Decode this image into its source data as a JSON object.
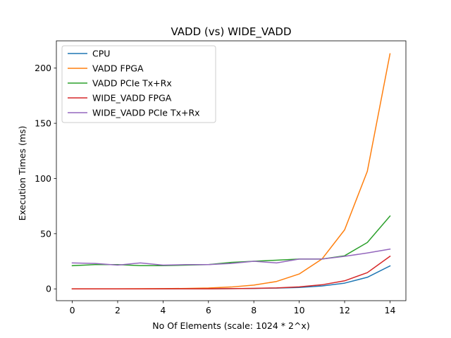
{
  "chart_data": {
    "type": "line",
    "title": "VADD (vs) WIDE_VADD",
    "xlabel": "No Of Elements (scale: 1024 * 2^x)",
    "ylabel": "Execution Times (ms)",
    "xlim": [
      -0.7,
      14.7
    ],
    "ylim": [
      -10.7,
      224.7
    ],
    "xticks": [
      0,
      2,
      4,
      6,
      8,
      10,
      12,
      14
    ],
    "yticks": [
      0,
      50,
      100,
      150,
      200
    ],
    "grid": false,
    "legend_position": "top-left",
    "x": [
      0,
      1,
      2,
      3,
      4,
      5,
      6,
      7,
      8,
      9,
      10,
      11,
      12,
      13,
      14
    ],
    "series": [
      {
        "name": "CPU",
        "color": "#1f77b4",
        "values": [
          0.0,
          0.0,
          0.0,
          0.0,
          0.0,
          0.1,
          0.1,
          0.2,
          0.4,
          0.7,
          1.3,
          2.6,
          5.2,
          10.5,
          20.8
        ]
      },
      {
        "name": "VADD FPGA",
        "color": "#ff7f0e",
        "values": [
          0.05,
          0.1,
          0.1,
          0.15,
          0.2,
          0.4,
          0.8,
          1.7,
          3.4,
          6.7,
          13.5,
          27.0,
          53.5,
          106.5,
          213.0
        ]
      },
      {
        "name": "VADD PCIe Tx+Rx",
        "color": "#2ca02c",
        "values": [
          21.0,
          22.0,
          22.0,
          21.0,
          21.0,
          21.5,
          22.0,
          24.0,
          25.0,
          26.0,
          27.0,
          27.0,
          30.0,
          42.0,
          66.0
        ]
      },
      {
        "name": "WIDE_VADD FPGA",
        "color": "#d62728",
        "values": [
          0.0,
          0.0,
          0.0,
          0.0,
          0.1,
          0.1,
          0.1,
          0.2,
          0.5,
          0.9,
          1.8,
          3.7,
          7.3,
          14.7,
          29.5
        ]
      },
      {
        "name": "WIDE_VADD PCIe Tx+Rx",
        "color": "#9467bd",
        "values": [
          23.5,
          23.0,
          21.5,
          23.5,
          21.5,
          22.0,
          22.0,
          23.0,
          25.0,
          23.5,
          27.0,
          27.0,
          29.5,
          32.5,
          36.0
        ]
      }
    ]
  }
}
